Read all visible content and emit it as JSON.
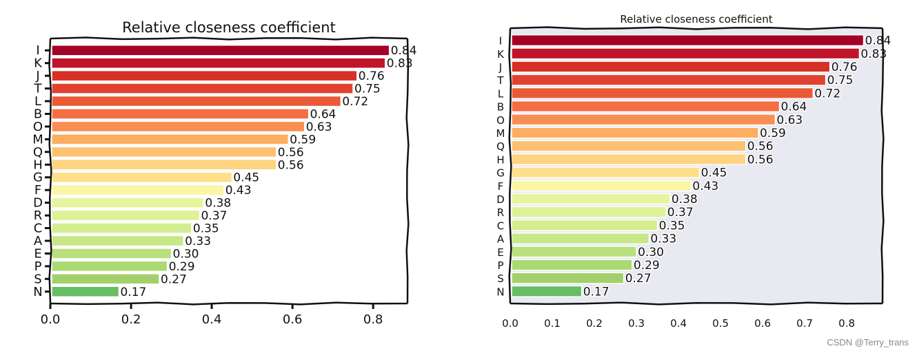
{
  "watermark": "CSDN @Terry_trans",
  "chart_data": [
    {
      "type": "bar",
      "orientation": "horizontal",
      "style": "xkcd, white background",
      "title": "Relative closeness coefficient",
      "xlabel": "",
      "ylabel": "",
      "xlim": [
        0,
        0.885
      ],
      "xticks": [
        0.0,
        0.2,
        0.4,
        0.6,
        0.8
      ],
      "xtick_labels": [
        "0.0",
        "0.2",
        "0.4",
        "0.6",
        "0.8"
      ],
      "categories": [
        "I",
        "K",
        "J",
        "T",
        "L",
        "B",
        "O",
        "M",
        "Q",
        "H",
        "G",
        "F",
        "D",
        "R",
        "C",
        "A",
        "E",
        "P",
        "S",
        "N"
      ],
      "values": [
        0.84,
        0.83,
        0.76,
        0.75,
        0.72,
        0.64,
        0.63,
        0.59,
        0.56,
        0.56,
        0.45,
        0.43,
        0.38,
        0.37,
        0.35,
        0.33,
        0.3,
        0.29,
        0.27,
        0.17
      ],
      "value_labels": [
        "0.84",
        "0.83",
        "0.76",
        "0.75",
        "0.72",
        "0.64",
        "0.63",
        "0.59",
        "0.56",
        "0.56",
        "0.45",
        "0.43",
        "0.38",
        "0.37",
        "0.35",
        "0.33",
        "0.30",
        "0.29",
        "0.27",
        "0.17"
      ],
      "colors": [
        "#a50026",
        "#c0142b",
        "#d73027",
        "#e0422f",
        "#ea5a37",
        "#f46d43",
        "#f98e52",
        "#fdae61",
        "#fdc171",
        "#fed381",
        "#fee08b",
        "#fdf5a6",
        "#e6f59d",
        "#ddf196",
        "#d4ed8f",
        "#c8e787",
        "#b9e07c",
        "#aadb72",
        "#a3d06b",
        "#66bd63"
      ],
      "background": "#ffffff"
    },
    {
      "type": "bar",
      "orientation": "horizontal",
      "style": "xkcd, shaded background",
      "title": "Relative closeness coefficient",
      "xlabel": "",
      "ylabel": "",
      "xlim": [
        0,
        0.885
      ],
      "xticks": [
        0.0,
        0.1,
        0.2,
        0.3,
        0.4,
        0.5,
        0.6,
        0.7,
        0.8
      ],
      "xtick_labels": [
        "0.0",
        "0.1",
        "0.2",
        "0.3",
        "0.4",
        "0.5",
        "0.6",
        "0.7",
        "0.8"
      ],
      "categories": [
        "I",
        "K",
        "J",
        "T",
        "L",
        "B",
        "O",
        "M",
        "Q",
        "H",
        "G",
        "F",
        "D",
        "R",
        "C",
        "A",
        "E",
        "P",
        "S",
        "N"
      ],
      "values": [
        0.84,
        0.83,
        0.76,
        0.75,
        0.72,
        0.64,
        0.63,
        0.59,
        0.56,
        0.56,
        0.45,
        0.43,
        0.38,
        0.37,
        0.35,
        0.33,
        0.3,
        0.29,
        0.27,
        0.17
      ],
      "value_labels": [
        "0.84",
        "0.83",
        "0.76",
        "0.75",
        "0.72",
        "0.64",
        "0.63",
        "0.59",
        "0.56",
        "0.56",
        "0.45",
        "0.43",
        "0.38",
        "0.37",
        "0.35",
        "0.33",
        "0.30",
        "0.29",
        "0.27",
        "0.17"
      ],
      "colors": [
        "#a50026",
        "#c0142b",
        "#d73027",
        "#e0422f",
        "#ea5a37",
        "#f46d43",
        "#f98e52",
        "#fdae61",
        "#fdc171",
        "#fed381",
        "#fee08b",
        "#fdf5a6",
        "#e6f59d",
        "#ddf196",
        "#d4ed8f",
        "#c8e787",
        "#b9e07c",
        "#aadb72",
        "#a3d06b",
        "#66bd63"
      ],
      "background": "#e8e9f1"
    }
  ]
}
